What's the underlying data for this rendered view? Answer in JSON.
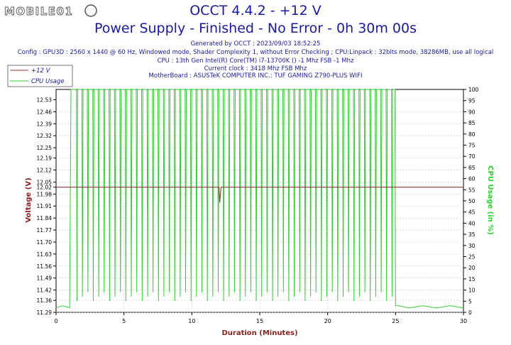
{
  "watermark": "MOBILE01",
  "header": {
    "title": "OCCT 4.4.2 - +12 V",
    "subtitle": "Power Supply - Finished - No Error - 0h 30m 00s",
    "info_lines": [
      "Generated by OCCT : 2023/09/03 18:52:25",
      "Config : GPU3D : 2560 x 1440 @ 60 Hz, Windowed mode, Shader Complexity 1, without Error Checking ; CPU:Linpack : 32bits mode, 38286MB, use all logical",
      "CPU : 13th Gen Intel(R) Core(TM) i7-13700K () -1 Mhz FSB -1 Mhz",
      "Current clock : 3418 Mhz FSB  Mhz",
      "MotherBoard : ASUSTeK COMPUTER INC.: TUF GAMING Z790-PLUS WIFI"
    ]
  },
  "colors": {
    "voltage": "#8b3a3a",
    "cpu": "#33cc33",
    "title": "#1a1aa0",
    "grid": "#c8c8c8",
    "axis_label": "#8b2020",
    "cpu_label": "#33cc33"
  },
  "chart_data": {
    "type": "line",
    "xlabel": "Duration (Minutes)",
    "ylabel_left": "Voltage (V)",
    "ylabel_right": "CPU Usage (in %)",
    "x_ticks": [
      "0",
      "5",
      "10",
      "15",
      "20",
      "25",
      "30"
    ],
    "xlim": [
      0,
      30
    ],
    "y_left_ticks": [
      "12.53",
      "12.46",
      "12.39",
      "12.32",
      "12.25",
      "12.19",
      "12.12",
      "12.05",
      "12.02",
      "11.98",
      "11.91",
      "11.84",
      "11.77",
      "11.70",
      "11.63",
      "11.56",
      "11.49",
      "11.42",
      "11.36",
      "11.29"
    ],
    "y_left_ticks_text": [
      "12.53",
      "12.46",
      "12.39",
      "12.32",
      "12.25",
      "12.19",
      "12.12",
      "12.05",
      "12.02",
      "11.98",
      "11.91",
      "11.84",
      "11.77",
      "11.70",
      "11.63",
      "11.56",
      "11.49",
      "11.42",
      "11.36",
      "11.29"
    ],
    "ylim_left": [
      11.29,
      12.59
    ],
    "y_right_ticks": [
      "100",
      "95",
      "90",
      "85",
      "80",
      "75",
      "70",
      "65",
      "60",
      "55",
      "50",
      "45",
      "40",
      "35",
      "30",
      "25",
      "20",
      "15",
      "10",
      "5",
      "0"
    ],
    "ylim_right": [
      0,
      100
    ],
    "legend": [
      "+12 V",
      "CPU Usage"
    ],
    "series": [
      {
        "name": "+12 V",
        "axis": "left",
        "x": [
          0,
          12.0,
          12.05,
          12.15,
          12.2,
          30
        ],
        "y": [
          12.02,
          12.02,
          11.93,
          12.02,
          12.02,
          12.02
        ]
      },
      {
        "name": "CPU Usage",
        "axis": "right",
        "idle_pattern": {
          "x": [
            0,
            0.5,
            1.0,
            25.0,
            25.2,
            26,
            27,
            28,
            29,
            30
          ],
          "y": [
            2,
            3,
            2,
            2,
            3,
            2,
            3,
            2,
            3,
            2
          ]
        },
        "load_start": 1.1,
        "load_end": 24.95,
        "load_high": 100,
        "dip_low": 5,
        "dip_interval": 0.4
      }
    ]
  }
}
